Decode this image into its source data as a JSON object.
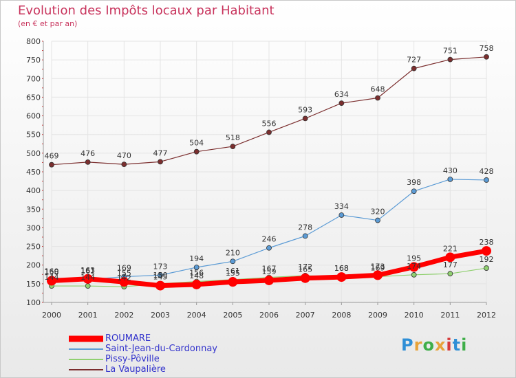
{
  "title": "Evolution des Impôts locaux par Habitant",
  "subtitle": "(en € et par an)",
  "logo": {
    "text": "Proxiti",
    "colors": [
      "#2f8fd6",
      "#e8a33a",
      "#3fae49",
      "#e8a33a",
      "#d63a3a",
      "#2f8fd6",
      "#3fae49"
    ]
  },
  "chart_data": {
    "type": "line",
    "x": [
      "2000",
      "2001",
      "2002",
      "2003",
      "2004",
      "2005",
      "2006",
      "2007",
      "2008",
      "2009",
      "2010",
      "2011",
      "2012"
    ],
    "ylim": [
      100,
      800
    ],
    "yticks": [
      "100",
      "150",
      "200",
      "250",
      "300",
      "350",
      "400",
      "450",
      "500",
      "550",
      "600",
      "650",
      "700",
      "750",
      "800"
    ],
    "grid": true,
    "legend_position": "bottom-left",
    "series": [
      {
        "name": "ROUMARE",
        "color": "#ff0000",
        "values": [
          158,
          163,
          155,
          145,
          148,
          155,
          159,
          165,
          168,
          173,
          195,
          221,
          238
        ],
        "labels": [
          "158",
          "163",
          "155",
          "145",
          "148",
          "155",
          "159",
          "165",
          "168",
          "173",
          "195",
          "221",
          "238"
        ]
      },
      {
        "name": "Saint-Jean-du-Cardonnay",
        "color": "#5b9bd5",
        "values": [
          160,
          161,
          169,
          173,
          194,
          210,
          246,
          278,
          334,
          320,
          398,
          430,
          428
        ],
        "labels": [
          "160",
          "161",
          "169",
          "173",
          "194",
          "210",
          "246",
          "278",
          "334",
          "320",
          "398",
          "430",
          "428"
        ]
      },
      {
        "name": "Pissy-Pôville",
        "color": "#90d070",
        "values": [
          144,
          144,
          142,
          150,
          156,
          161,
          167,
          172,
          168,
          169,
          174,
          177,
          192
        ],
        "labels": [
          "144",
          "144",
          "142",
          "150",
          "156",
          "161",
          "167",
          "172",
          "168",
          "169",
          "174",
          "177",
          "192"
        ]
      },
      {
        "name": "La Vaupalière",
        "color": "#7b2e2e",
        "values": [
          469,
          476,
          470,
          477,
          504,
          518,
          556,
          593,
          634,
          648,
          727,
          751,
          758
        ],
        "labels": [
          "469",
          "476",
          "470",
          "477",
          "504",
          "518",
          "556",
          "593",
          "634",
          "648",
          "727",
          "751",
          "758"
        ]
      }
    ]
  }
}
